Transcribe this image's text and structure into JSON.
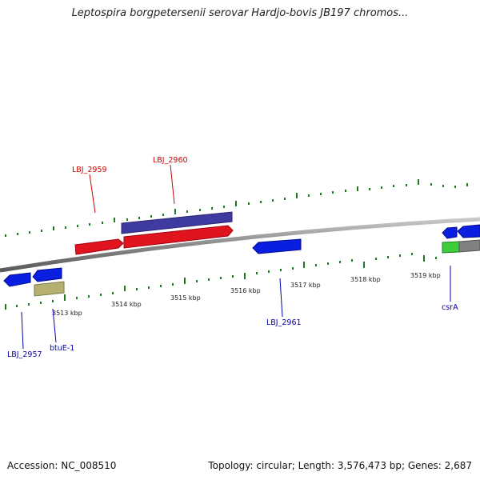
{
  "title": "Leptospira borgpetersenii serovar Hardjo-bovis JB197 chromos...",
  "footer": {
    "accession": "Accession: NC_008510",
    "topology": "Topology: circular; Length: 3,576,473 bp; Genes: 2,687"
  },
  "ticks": [
    "3513 kbp",
    "3514 kbp",
    "3515 kbp",
    "3516 kbp",
    "3517 kbp",
    "3518 kbp",
    "3519 kbp"
  ],
  "genes": [
    {
      "label": "LBJ_2959",
      "strand": "forward",
      "color": "#e0141e"
    },
    {
      "label": "LBJ_2960",
      "strand": "forward",
      "color": "#e0141e"
    },
    {
      "label": "LBJ_2961",
      "strand": "reverse",
      "color": "#0a1ee0"
    },
    {
      "label": "csrA",
      "strand": "reverse",
      "color": "#0a1ee0"
    },
    {
      "label": "LBJ_2957",
      "strand": "reverse",
      "color": "#0a1ee0"
    },
    {
      "label": "btuE-1",
      "strand": "reverse",
      "color": "#0a1ee0"
    }
  ],
  "colors": {
    "forward_gene": "#e0141e",
    "reverse_gene": "#0a1ee0",
    "cds_feature": "#3f3aa0",
    "rna_feature": "#b5b070",
    "green_feature": "#3ccc3c",
    "backbone": "#888888",
    "tick": "#1e7a1e",
    "forward_label": "#cc0000",
    "reverse_label": "#0000aa"
  }
}
